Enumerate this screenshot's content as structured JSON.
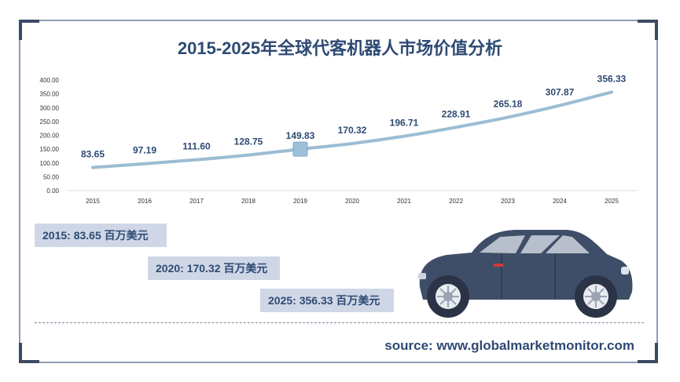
{
  "title": "2015-2025年全球代客机器人市场价值分析",
  "chart_data": {
    "type": "line",
    "title": "2015-2025年全球代客机器人市场价值分析",
    "categories": [
      "2015",
      "2016",
      "2017",
      "2018",
      "2019",
      "2020",
      "2021",
      "2022",
      "2023",
      "2024",
      "2025"
    ],
    "series": [
      {
        "values": [
          83.65,
          97.19,
          111.6,
          128.75,
          149.83,
          170.32,
          196.71,
          228.91,
          265.18,
          307.87,
          356.33
        ],
        "labels": [
          "83.65",
          "97.19",
          "111.60",
          "128.75",
          "149.83",
          "170.32",
          "196.71",
          "228.91",
          "265.18",
          "307.87",
          "356.33"
        ],
        "color": "#9bbdd4"
      }
    ],
    "highlight_index": 4,
    "highlight_color": "#9dc0da",
    "y_ticks": [
      "0.00",
      "50.00",
      "100.00",
      "150.00",
      "200.00",
      "250.00",
      "300.00",
      "350.00",
      "400.00"
    ],
    "ylim": [
      0,
      400
    ],
    "grid": false,
    "legend": "none"
  },
  "annotations": [
    {
      "text": "2015: 83.65 百万美元"
    },
    {
      "text": "2020: 170.32 百万美元"
    },
    {
      "text": "2025: 356.33 百万美元"
    }
  ],
  "source": "source: www.globalmarketmonitor.com",
  "colors": {
    "accent": "#2e4a73",
    "frame": "#3b4a63",
    "annotation_bg": "#cfd7e6",
    "car_body": "#3f4e68"
  },
  "illustration": "car-icon"
}
